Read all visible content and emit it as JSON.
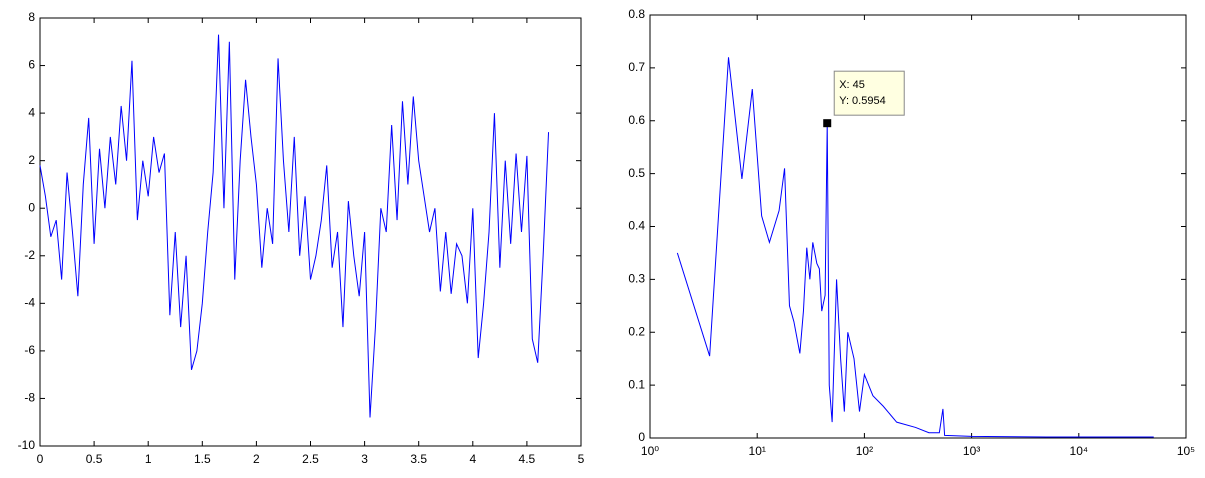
{
  "chart_data": [
    {
      "type": "line",
      "color": "#0000ff",
      "x": [
        0,
        0.05,
        0.1,
        0.15,
        0.2,
        0.25,
        0.3,
        0.35,
        0.4,
        0.45,
        0.5,
        0.55,
        0.6,
        0.65,
        0.7,
        0.75,
        0.8,
        0.85,
        0.9,
        0.95,
        1.0,
        1.05,
        1.1,
        1.15,
        1.2,
        1.25,
        1.3,
        1.35,
        1.4,
        1.45,
        1.5,
        1.55,
        1.6,
        1.65,
        1.7,
        1.75,
        1.8,
        1.85,
        1.9,
        1.95,
        2.0,
        2.05,
        2.1,
        2.15,
        2.2,
        2.25,
        2.3,
        2.35,
        2.4,
        2.45,
        2.5,
        2.55,
        2.6,
        2.65,
        2.7,
        2.75,
        2.8,
        2.85,
        2.9,
        2.95,
        3.0,
        3.05,
        3.1,
        3.15,
        3.2,
        3.25,
        3.3,
        3.35,
        3.4,
        3.45,
        3.5,
        3.55,
        3.6,
        3.65,
        3.7,
        3.75,
        3.8,
        3.85,
        3.9,
        3.95,
        4.0,
        4.05,
        4.1,
        4.15,
        4.2,
        4.25,
        4.3,
        4.35,
        4.4,
        4.45,
        4.5,
        4.55,
        4.6,
        4.65,
        4.7
      ],
      "values": [
        1.8,
        0.5,
        -1.2,
        -0.5,
        -3,
        1.5,
        -1,
        -3.7,
        1,
        3.8,
        -1.5,
        2.5,
        0,
        3,
        1,
        4.3,
        2,
        6.2,
        -0.5,
        2,
        0.5,
        3,
        1.5,
        2.3,
        -4.5,
        -1,
        -5,
        -2,
        -6.8,
        -6,
        -4,
        -1,
        1.5,
        7.3,
        0,
        7,
        -3,
        2,
        5.4,
        3,
        1,
        -2.5,
        0,
        -1.5,
        6.3,
        2,
        -1,
        3,
        -2,
        0.5,
        -3,
        -2,
        -0.5,
        1.8,
        -2.5,
        -1,
        -5,
        0.3,
        -2,
        -3.7,
        -1,
        -8.8,
        -5,
        0,
        -1,
        3.5,
        -0.5,
        4.5,
        1,
        4.7,
        2,
        0.5,
        -1,
        0,
        -3.5,
        -1,
        -3.6,
        -1.5,
        -2,
        -4,
        0,
        -6.3,
        -4,
        -1,
        4,
        -2.5,
        2,
        -1.5,
        2.3,
        -1,
        2.2,
        -5.5,
        -6.5,
        -2,
        3.2
      ],
      "xlim": [
        0,
        5
      ],
      "xticks": [
        0,
        0.5,
        1,
        1.5,
        2,
        2.5,
        3,
        3.5,
        4,
        4.5,
        5
      ],
      "ylim": [
        -10,
        8
      ],
      "yticks": [
        -10,
        -8,
        -6,
        -4,
        -2,
        0,
        2,
        4,
        6,
        8
      ]
    },
    {
      "type": "line",
      "color": "#0000ff",
      "xscale": "log",
      "x": [
        1.8,
        3.6,
        5.4,
        7.2,
        9,
        11,
        13,
        16,
        18,
        20,
        22,
        25,
        27,
        29,
        31,
        33,
        36,
        38,
        40,
        43,
        45,
        47,
        50,
        55,
        60,
        65,
        70,
        80,
        90,
        100,
        120,
        150,
        200,
        300,
        400,
        500,
        540,
        560,
        1000,
        5000,
        10000,
        50000
      ],
      "values": [
        0.35,
        0.155,
        0.72,
        0.49,
        0.66,
        0.42,
        0.37,
        0.43,
        0.51,
        0.25,
        0.22,
        0.16,
        0.24,
        0.36,
        0.3,
        0.37,
        0.33,
        0.32,
        0.24,
        0.27,
        0.5954,
        0.1,
        0.03,
        0.3,
        0.15,
        0.05,
        0.2,
        0.15,
        0.05,
        0.12,
        0.08,
        0.06,
        0.03,
        0.02,
        0.01,
        0.01,
        0.055,
        0.005,
        0.003,
        0.002,
        0.002,
        0.002
      ],
      "xlim": [
        1,
        100000
      ],
      "xticks": [
        {
          "value": 1,
          "label": "10⁰"
        },
        {
          "value": 10,
          "label": "10¹"
        },
        {
          "value": 100,
          "label": "10²"
        },
        {
          "value": 1000,
          "label": "10³"
        },
        {
          "value": 10000,
          "label": "10⁴"
        },
        {
          "value": 100000,
          "label": "10⁵"
        }
      ],
      "ylim": [
        0,
        0.8
      ],
      "yticks": [
        0,
        0.1,
        0.2,
        0.3,
        0.4,
        0.5,
        0.6,
        0.7,
        0.8
      ],
      "annotation": {
        "x": 45,
        "y": 0.5954,
        "lines": [
          "X: 45",
          "Y: 0.5954"
        ]
      }
    }
  ]
}
